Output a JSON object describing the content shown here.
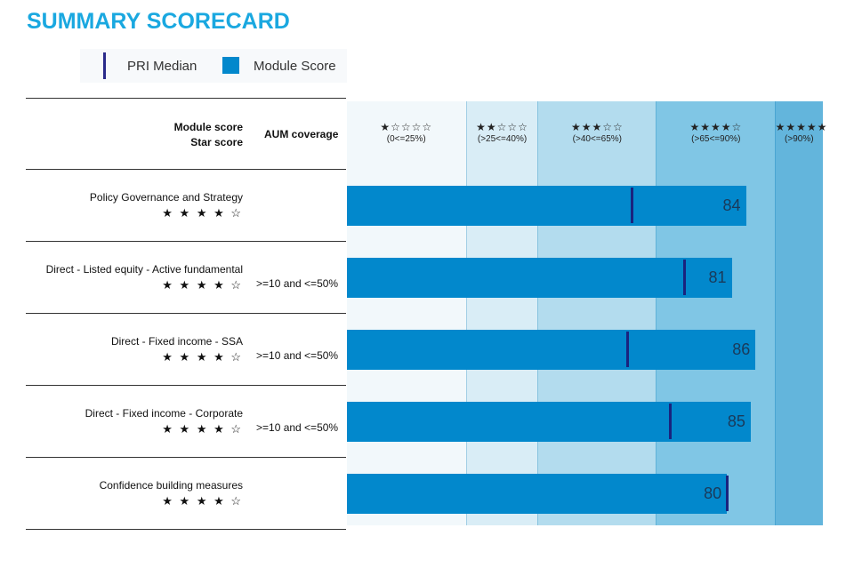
{
  "title": "SUMMARY SCORECARD",
  "legend": {
    "median": "PRI Median",
    "score": "Module Score"
  },
  "header": {
    "module_score": "Module score",
    "star_score": "Star score",
    "aum": "AUM coverage"
  },
  "chart_data": {
    "type": "bar",
    "orientation": "horizontal",
    "xlim": [
      0,
      100
    ],
    "colors": {
      "bar": "#0288cc",
      "median": "#1a237e"
    },
    "bands": [
      {
        "stars": "★☆☆☆☆",
        "label": "(0<=25%)",
        "from": 0,
        "to": 25,
        "color": "#f2f8fb"
      },
      {
        "stars": "★★☆☆☆",
        "label": "(>25<=40%)",
        "from": 25,
        "to": 40,
        "color": "#d9edf6"
      },
      {
        "stars": "★★★☆☆",
        "label": "(>40<=65%)",
        "from": 40,
        "to": 65,
        "color": "#b3dcee"
      },
      {
        "stars": "★★★★☆",
        "label": "(>65<=90%)",
        "from": 65,
        "to": 90,
        "color": "#80c6e5"
      },
      {
        "stars": "★★★★★",
        "label": "(>90%)",
        "from": 90,
        "to": 100,
        "color": "#63b5dc"
      }
    ],
    "rows": [
      {
        "name": "Policy Governance and Strategy",
        "stars": "★ ★ ★ ★ ☆",
        "aum": "",
        "score": 84,
        "median": 60
      },
      {
        "name": "Direct - Listed equity - Active fundamental",
        "stars": "★ ★ ★ ★ ☆",
        "aum": ">=10 and <=50%",
        "score": 81,
        "median": 71
      },
      {
        "name": "Direct - Fixed income - SSA",
        "stars": "★ ★ ★ ★ ☆",
        "aum": ">=10 and <=50%",
        "score": 86,
        "median": 59
      },
      {
        "name": "Direct - Fixed income - Corporate",
        "stars": "★ ★ ★ ★ ☆",
        "aum": ">=10 and <=50%",
        "score": 85,
        "median": 68
      },
      {
        "name": "Confidence building measures",
        "stars": "★ ★ ★ ★ ☆",
        "aum": "",
        "score": 80,
        "median": 80
      }
    ]
  }
}
